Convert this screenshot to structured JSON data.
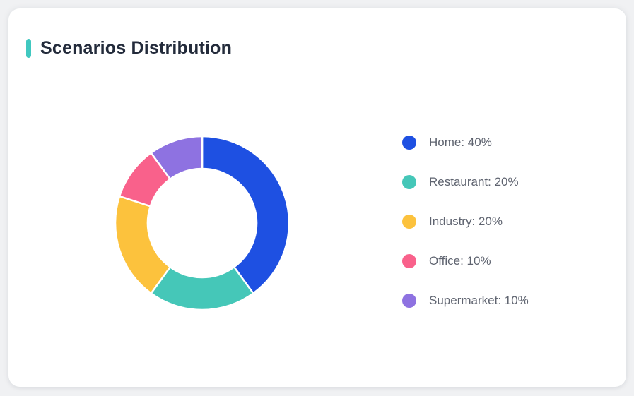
{
  "page": {
    "background_color": "#F0F1F3",
    "card_background": "#FFFFFF",
    "accent_color": "#40C8C0",
    "title_color": "#232B3B"
  },
  "chart_data": {
    "type": "pie",
    "variant": "donut",
    "title": "Scenarios Distribution",
    "categories": [
      "Home",
      "Restaurant",
      "Industry",
      "Office",
      "Supermarket"
    ],
    "values": [
      40,
      20,
      20,
      10,
      10
    ],
    "unit": "%",
    "colors": [
      "#1E50E2",
      "#45C7B8",
      "#FCC23D",
      "#F9618B",
      "#8E72E1"
    ],
    "legend_labels": [
      "Home: 40%",
      "Restaurant: 20%",
      "Industry: 20%",
      "Office: 10%",
      "Supermarket: 10%"
    ],
    "legend_position": "right",
    "start_angle": "top",
    "direction": "clockwise",
    "inner_radius_px": 77,
    "outer_radius_px": 123,
    "segment_gap_color": "#FFFFFF",
    "legend_text_color": "#5F6470"
  }
}
